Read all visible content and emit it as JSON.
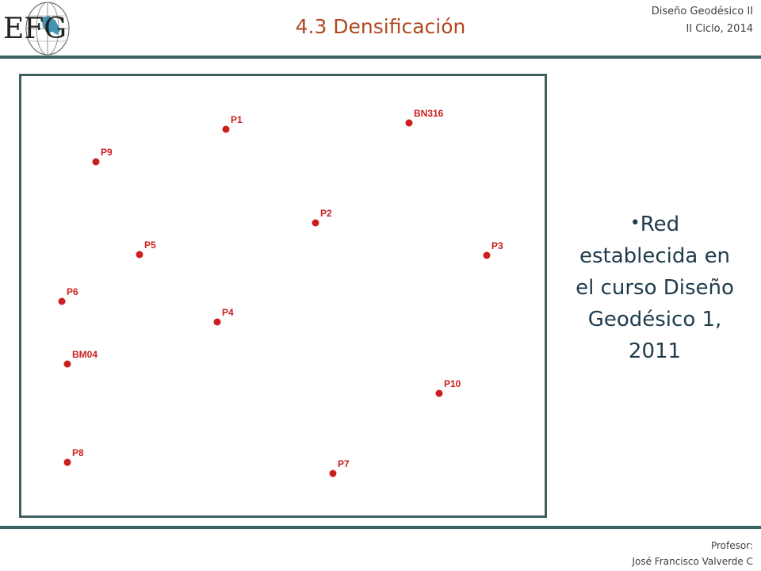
{
  "header": {
    "logo_text": "EFG",
    "title": "4.3 Densificación",
    "course": "Diseño Geodésico II",
    "term": "II Ciclo, 2014"
  },
  "colors": {
    "title": "#b0471f",
    "rule": "#3a6363",
    "point": "#cc1e1e",
    "bullet_text": "#1f3b4b"
  },
  "bullet": {
    "text": "Red establecida en el curso Diseño Geodésico 1, 2011",
    "lines": [
      "Red",
      "establecida en",
      "el curso Diseño",
      "Geodésico 1,",
      "2011"
    ]
  },
  "footer": {
    "role": "Profesor:",
    "name": "José Francisco Valverde C"
  },
  "points": [
    {
      "name": "P1"
    },
    {
      "name": "BN316"
    },
    {
      "name": "P9"
    },
    {
      "name": "P2"
    },
    {
      "name": "P5"
    },
    {
      "name": "P3"
    },
    {
      "name": "P6"
    },
    {
      "name": "P4"
    },
    {
      "name": "BM04"
    },
    {
      "name": "P10"
    },
    {
      "name": "P8"
    },
    {
      "name": "P7"
    }
  ]
}
